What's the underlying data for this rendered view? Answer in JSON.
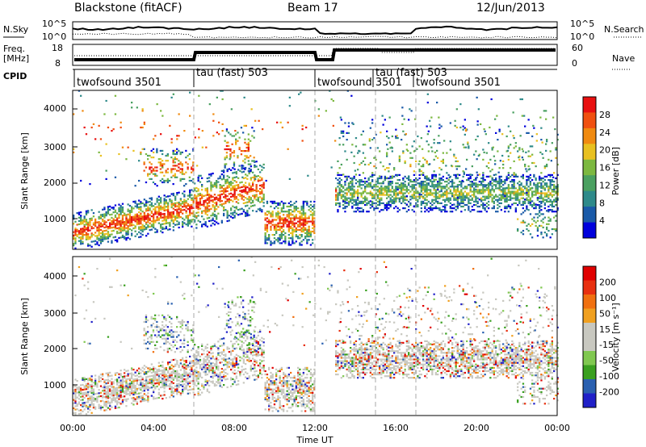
{
  "header": {
    "radar": "Blackstone (fitACF)",
    "beam": "Beam 17",
    "date": "12/Jun/2013"
  },
  "strip": {
    "nsky_label": "N.Sky",
    "nsky_ticks": [
      "10^5",
      "10^0"
    ],
    "nsearch_label": "N.Search",
    "nsearch_ticks": [
      "10^5",
      "10^0"
    ],
    "freq_label": "Freq.",
    "freq_unit": "[MHz]",
    "freq_ticks": [
      "18",
      "8"
    ],
    "nave_label": "Nave",
    "nave_ticks": [
      "60",
      "0"
    ],
    "cpid_label": "CPID"
  },
  "cpid_segments": [
    {
      "label": "twofsound 3501",
      "start_hr": 0,
      "end_hr": 6
    },
    {
      "label": "tau (fast) 503",
      "start_hr": 6,
      "end_hr": 12
    },
    {
      "label": "twofsound 3501",
      "start_hr": 12,
      "end_hr": 15
    },
    {
      "label": "tau (fast) 503",
      "start_hr": 15,
      "end_hr": 17
    },
    {
      "label": "twofsound 3501",
      "start_hr": 17,
      "end_hr": 24
    }
  ],
  "colors": {
    "power_scale": [
      "#0000dc",
      "#1a5aa8",
      "#2e8a8a",
      "#4aa060",
      "#7cb840",
      "#e8c020",
      "#f08a10",
      "#f05010",
      "#e81010"
    ],
    "velocity_scale": [
      "#2020c8",
      "#2a60b0",
      "#3aa020",
      "#80c850",
      "#c8c8c0",
      "#c8c8c0",
      "#f0a020",
      "#f07010",
      "#e83010",
      "#e00000"
    ]
  },
  "chart_data": [
    {
      "type": "heatmap",
      "panel": "power",
      "ylabel": "Slant Range [km]",
      "yticks": [
        "1000",
        "2000",
        "3000",
        "4000"
      ],
      "ylim": [
        200,
        4500
      ],
      "xlim": [
        0,
        24
      ],
      "colorbar_label": "Power [dB]",
      "colorbar_ticks": [
        "4",
        "8",
        "12",
        "16",
        "20",
        "24",
        "28"
      ],
      "colorbar_range": [
        0,
        30
      ],
      "bands": [
        {
          "t0": 0,
          "t1": 6,
          "r0": 700,
          "r1": 1500,
          "level": 22
        },
        {
          "t0": 6,
          "t1": 9,
          "r0": 1300,
          "r1": 1900,
          "level": 18
        },
        {
          "t0": 9,
          "t1": 12,
          "r0": 500,
          "r1": 1200,
          "level": 24
        },
        {
          "t0": 13,
          "t1": 24,
          "r0": 1400,
          "r1": 2100,
          "level": 14
        }
      ]
    },
    {
      "type": "heatmap",
      "panel": "velocity",
      "ylabel": "Slant Range [km]",
      "yticks": [
        "1000",
        "2000",
        "3000",
        "4000"
      ],
      "ylim": [
        200,
        4500
      ],
      "xlim": [
        0,
        24
      ],
      "xlabel": "Time UT",
      "xticks": [
        "00:00",
        "04:00",
        "08:00",
        "12:00",
        "16:00",
        "20:00",
        "00:00"
      ],
      "colorbar_label": "Velocity [m s⁻¹]",
      "colorbar_ticks": [
        "200",
        "100",
        "50",
        "15",
        "-15",
        "-50",
        "-100",
        "-200"
      ],
      "colorbar_range": [
        -250,
        250
      ]
    }
  ]
}
